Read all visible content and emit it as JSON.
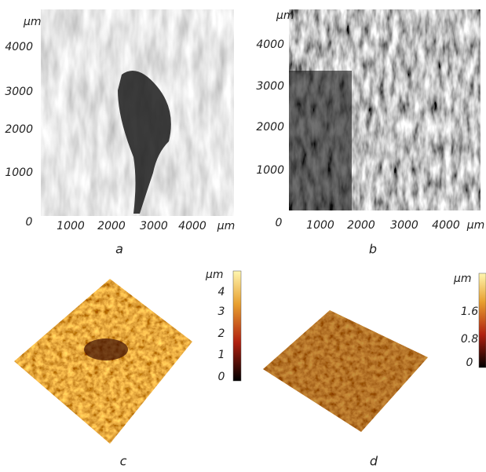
{
  "panels": [
    {
      "caption": "a",
      "y_unit": "μm",
      "yticks": [
        "4000",
        "3000",
        "2000",
        "1000"
      ],
      "origin": "0",
      "xticks": [
        "1000",
        "2000",
        "3000",
        "4000"
      ],
      "x_unit": "μm"
    },
    {
      "caption": "b",
      "y_unit": "μm",
      "yticks": [
        "4000",
        "3000",
        "2000",
        "1000"
      ],
      "origin": "0",
      "xticks": [
        "1000",
        "2000",
        "3000",
        "4000"
      ],
      "x_unit": "μm"
    },
    {
      "caption": "c",
      "colorbar_unit": "μm",
      "colorbar_ticks": [
        "4",
        "3",
        "2",
        "1",
        "0"
      ]
    },
    {
      "caption": "d",
      "colorbar_unit": "μm",
      "colorbar_ticks": [
        "1.6",
        "0.8",
        "0"
      ]
    }
  ]
}
